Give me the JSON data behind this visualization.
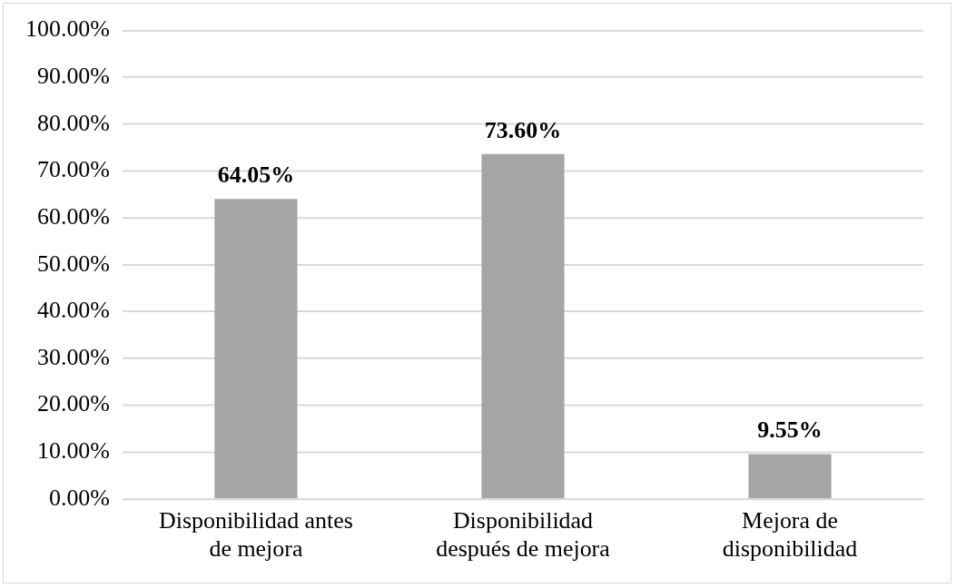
{
  "chart_data": {
    "type": "bar",
    "categories": [
      "Disponibilidad antes de mejora",
      "Disponibilidad después de mejora",
      "Mejora de disponibilidad"
    ],
    "values": [
      64.05,
      73.6,
      9.55
    ],
    "color": "#a5a5a5",
    "value_labels": [
      "64.05%",
      "73.60%",
      "9.55%"
    ],
    "ylim": [
      0,
      100
    ],
    "yticks": [
      {
        "value": 0,
        "label": "0.00%"
      },
      {
        "value": 10,
        "label": "10.00%"
      },
      {
        "value": 20,
        "label": "20.00%"
      },
      {
        "value": 30,
        "label": "30.00%"
      },
      {
        "value": 40,
        "label": "40.00%"
      },
      {
        "value": 50,
        "label": "50.00%"
      },
      {
        "value": 60,
        "label": "60.00%"
      },
      {
        "value": 70,
        "label": "70.00%"
      },
      {
        "value": 80,
        "label": "80.00%"
      },
      {
        "value": 90,
        "label": "90.00%"
      },
      {
        "value": 100,
        "label": "100.00%"
      }
    ],
    "grid": "y",
    "legend": false
  }
}
